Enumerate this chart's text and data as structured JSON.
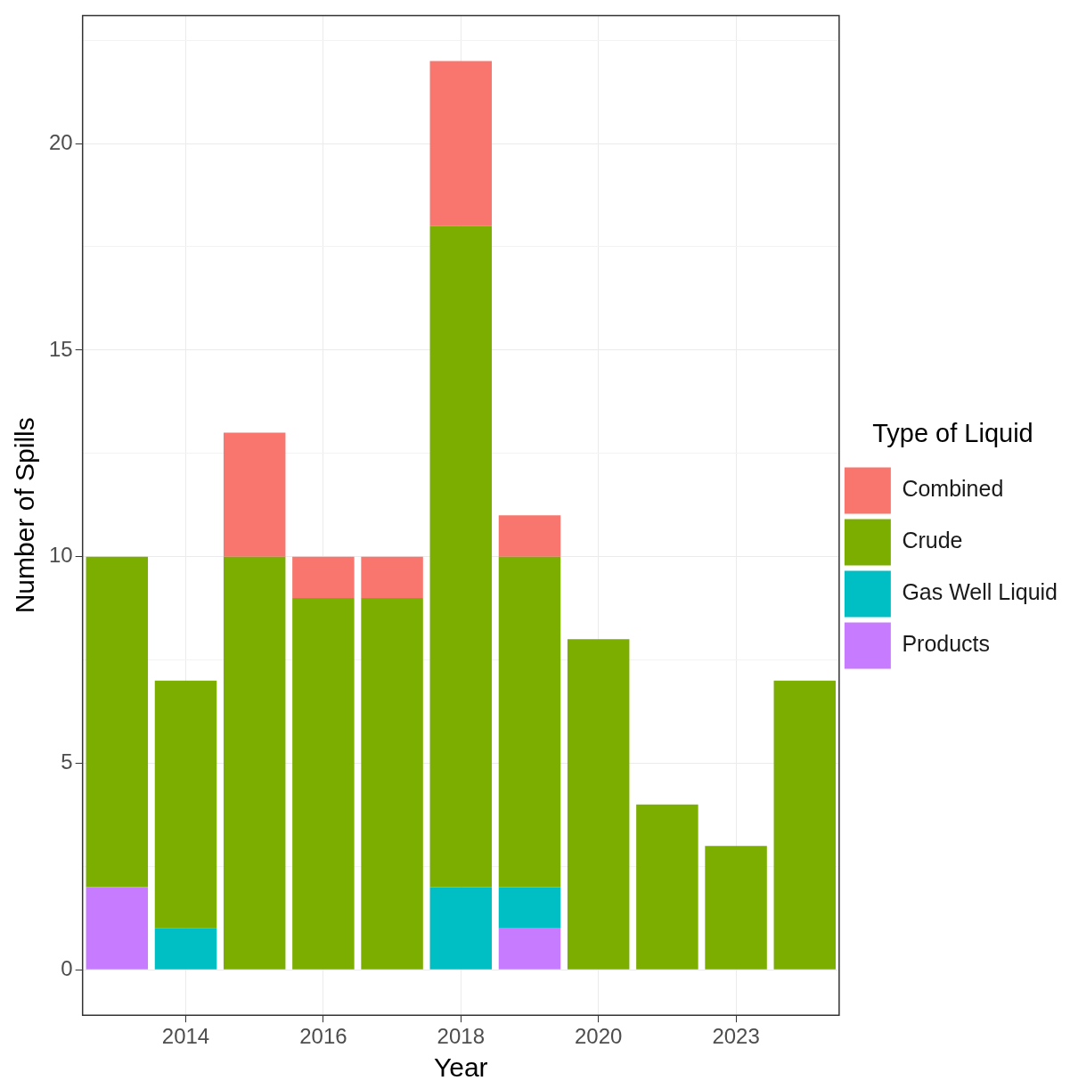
{
  "chart_data": {
    "type": "bar",
    "xlabel": "Year",
    "ylabel": "Number of Spills",
    "legend_title": "Type of Liquid",
    "categories": [
      null,
      "2014",
      null,
      "2016",
      null,
      "2018",
      null,
      "2020",
      null,
      "2023",
      null
    ],
    "stacked": true,
    "series": [
      {
        "name": "Products",
        "color": "#c77cff",
        "values": [
          2,
          0,
          0,
          0,
          0,
          0,
          1,
          0,
          0,
          0,
          0
        ]
      },
      {
        "name": "Gas Well Liquid",
        "color": "#00bfc4",
        "values": [
          0,
          1,
          0,
          0,
          0,
          2,
          1,
          0,
          0,
          0,
          0
        ]
      },
      {
        "name": "Crude",
        "color": "#7cae00",
        "values": [
          8,
          6,
          10,
          9,
          9,
          16,
          8,
          8,
          4,
          3,
          7
        ]
      },
      {
        "name": "Combined",
        "color": "#f8766d",
        "values": [
          0,
          0,
          3,
          1,
          1,
          4,
          1,
          0,
          0,
          0,
          0
        ]
      }
    ],
    "ylim": [
      -1.1,
      23.1
    ],
    "yticks": [
      0,
      {
        "value": 2.5,
        "label": null
      },
      5,
      {
        "value": 7.5,
        "label": null
      },
      10,
      {
        "value": 12.5,
        "label": null
      },
      15,
      {
        "value": 17.5,
        "label": null
      },
      20,
      {
        "value": 22.5,
        "label": null
      }
    ],
    "grid": true,
    "legend": "right"
  }
}
